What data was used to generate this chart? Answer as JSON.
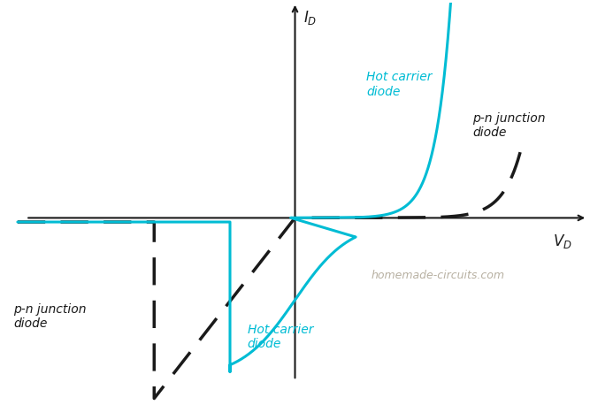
{
  "background_color": "#ffffff",
  "hot_carrier_color": "#00bcd4",
  "pn_junction_color": "#1a1a1a",
  "axis_color": "#1a1a1a",
  "watermark_text": "homemade-circuits.com",
  "watermark_color": "#b0a898",
  "label_hot_carrier_forward": "Hot carrier\ndiode",
  "label_pn_forward": "p-n junction\ndiode",
  "label_hot_carrier_reverse": "Hot carrier\ndiode",
  "label_pn_reverse": "p-n junction\ndiode",
  "xlim": [
    -1.35,
    1.35
  ],
  "ylim": [
    -0.9,
    1.05
  ]
}
